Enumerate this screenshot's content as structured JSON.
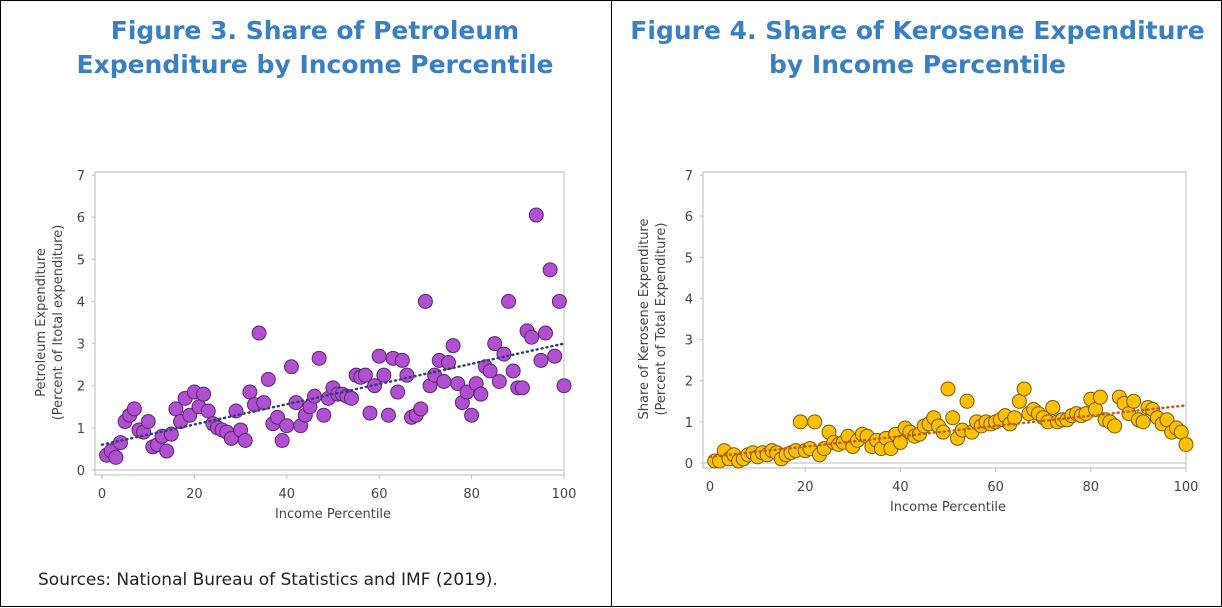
{
  "chart_data": [
    {
      "type": "scatter",
      "title": "Figure 3. Share of Petroleum Expenditure by Income Percentile",
      "xlabel": "Income Percentile",
      "ylabel": [
        "Petroleum Expenditure",
        "(Percent of ltotal expenditure)"
      ],
      "x": [
        1,
        2,
        3,
        4,
        5,
        6,
        7,
        8,
        9,
        10,
        11,
        12,
        13,
        14,
        15,
        16,
        17,
        18,
        19,
        20,
        21,
        22,
        23,
        24,
        25,
        26,
        27,
        28,
        29,
        30,
        31,
        32,
        33,
        34,
        35,
        36,
        37,
        38,
        39,
        40,
        41,
        42,
        43,
        44,
        45,
        46,
        47,
        48,
        49,
        50,
        51,
        52,
        53,
        54,
        55,
        56,
        57,
        58,
        59,
        60,
        61,
        62,
        63,
        64,
        65,
        66,
        67,
        68,
        69,
        70,
        71,
        72,
        73,
        74,
        75,
        76,
        77,
        78,
        79,
        80,
        81,
        82,
        83,
        84,
        85,
        86,
        87,
        88,
        89,
        90,
        91,
        92,
        93,
        94,
        95,
        96,
        97,
        98,
        99,
        100
      ],
      "series": [
        {
          "color": "#b04fd0",
          "values": [
            0.35,
            0.45,
            0.3,
            0.65,
            1.15,
            1.3,
            1.45,
            0.95,
            0.9,
            1.15,
            0.55,
            0.6,
            0.8,
            0.45,
            0.85,
            1.45,
            1.15,
            1.7,
            1.3,
            1.85,
            1.5,
            1.8,
            1.4,
            1.1,
            1.0,
            0.95,
            0.9,
            0.75,
            1.4,
            0.95,
            0.7,
            1.85,
            1.55,
            3.25,
            1.6,
            2.15,
            1.1,
            1.25,
            0.7,
            1.05,
            2.45,
            1.6,
            1.05,
            1.3,
            1.5,
            1.75,
            2.65,
            1.3,
            1.7,
            1.95,
            1.8,
            1.8,
            1.75,
            1.7,
            2.25,
            2.2,
            2.25,
            1.35,
            2.0,
            2.7,
            2.25,
            1.3,
            2.65,
            1.85,
            2.6,
            2.25,
            1.25,
            1.3,
            1.45,
            4.0,
            2.0,
            2.25,
            2.6,
            2.1,
            2.55,
            2.95,
            2.05,
            1.6,
            1.85,
            1.3,
            2.05,
            1.8,
            2.45,
            2.35,
            3.0,
            2.1,
            2.75,
            4.0,
            2.35,
            1.95,
            1.95,
            3.3,
            3.15,
            6.05,
            2.6,
            3.25,
            4.75,
            2.7,
            4.0,
            2.0
          ]
        }
      ],
      "trendline": {
        "color": "#2f3f7f",
        "x": [
          0,
          100
        ],
        "y": [
          0.6,
          3.0
        ]
      },
      "xlim": [
        0,
        100
      ],
      "ylim": [
        0,
        7
      ],
      "xticks": [
        0,
        20,
        40,
        60,
        80,
        100
      ],
      "yticks": [
        0,
        1,
        2,
        3,
        4,
        5,
        6,
        7
      ]
    },
    {
      "type": "scatter",
      "title": "Figure 4. Share of Kerosene Expenditure by Income Percentile",
      "xlabel": "Income Percentile",
      "ylabel": [
        "Share of Kerosene Expenditure",
        "(Percent of Total Expenditure)"
      ],
      "x": [
        1,
        2,
        3,
        4,
        5,
        6,
        7,
        8,
        9,
        10,
        11,
        12,
        13,
        14,
        15,
        16,
        17,
        18,
        19,
        20,
        21,
        22,
        23,
        24,
        25,
        26,
        27,
        28,
        29,
        30,
        31,
        32,
        33,
        34,
        35,
        36,
        37,
        38,
        39,
        40,
        41,
        42,
        43,
        44,
        45,
        46,
        47,
        48,
        49,
        50,
        51,
        52,
        53,
        54,
        55,
        56,
        57,
        58,
        59,
        60,
        61,
        62,
        63,
        64,
        65,
        66,
        67,
        68,
        69,
        70,
        71,
        72,
        73,
        74,
        75,
        76,
        77,
        78,
        79,
        80,
        81,
        82,
        83,
        84,
        85,
        86,
        87,
        88,
        89,
        90,
        91,
        92,
        93,
        94,
        95,
        96,
        97,
        98,
        99,
        100
      ],
      "series": [
        {
          "color": "#ffc000",
          "values": [
            0.05,
            0.05,
            0.3,
            0.1,
            0.2,
            0.05,
            0.1,
            0.2,
            0.25,
            0.15,
            0.25,
            0.2,
            0.3,
            0.25,
            0.1,
            0.2,
            0.25,
            0.3,
            1.0,
            0.3,
            0.35,
            1.0,
            0.2,
            0.35,
            0.75,
            0.5,
            0.45,
            0.5,
            0.65,
            0.4,
            0.55,
            0.7,
            0.65,
            0.4,
            0.55,
            0.35,
            0.6,
            0.35,
            0.7,
            0.5,
            0.85,
            0.75,
            0.65,
            0.7,
            0.9,
            0.95,
            1.1,
            0.9,
            0.75,
            1.8,
            1.1,
            0.6,
            0.8,
            1.5,
            0.75,
            1.0,
            0.9,
            1.0,
            0.95,
            1.0,
            1.05,
            1.15,
            0.95,
            1.1,
            1.5,
            1.8,
            1.2,
            1.3,
            1.2,
            1.1,
            1.0,
            1.35,
            1.0,
            1.05,
            1.05,
            1.15,
            1.2,
            1.15,
            1.2,
            1.55,
            1.3,
            1.6,
            1.05,
            1.0,
            0.9,
            1.6,
            1.45,
            1.2,
            1.5,
            1.05,
            1.0,
            1.35,
            1.3,
            1.1,
            0.95,
            1.05,
            0.75,
            0.85,
            0.75,
            0.45
          ]
        }
      ],
      "trendline": {
        "color": "#c55a11",
        "x": [
          0,
          100
        ],
        "y": [
          0.15,
          1.4
        ]
      },
      "xlim": [
        0,
        100
      ],
      "ylim": [
        0,
        7
      ],
      "xticks": [
        0,
        20,
        40,
        60,
        80,
        100
      ],
      "yticks": [
        0,
        1,
        2,
        3,
        4,
        5,
        6,
        7
      ]
    }
  ],
  "sources": "Sources: National Bureau of Statistics and IMF (2019)."
}
